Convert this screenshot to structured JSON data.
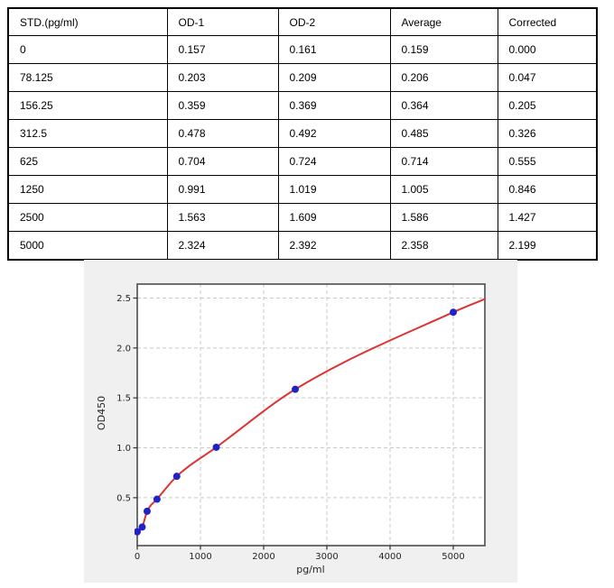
{
  "table": {
    "headers": [
      "STD.(pg/ml)",
      "OD-1",
      "OD-2",
      "Average",
      "Corrected"
    ],
    "rows": [
      [
        "0",
        "0.157",
        "0.161",
        "0.159",
        "0.000"
      ],
      [
        "78.125",
        "0.203",
        "0.209",
        "0.206",
        "0.047"
      ],
      [
        "156.25",
        "0.359",
        "0.369",
        "0.364",
        "0.205"
      ],
      [
        "312.5",
        "0.478",
        "0.492",
        "0.485",
        "0.326"
      ],
      [
        "625",
        "0.704",
        "0.724",
        "0.714",
        "0.555"
      ],
      [
        "1250",
        "0.991",
        "1.019",
        "1.005",
        "0.846"
      ],
      [
        "2500",
        "1.563",
        "1.609",
        "1.586",
        "1.427"
      ],
      [
        "5000",
        "2.324",
        "2.392",
        "2.358",
        "2.199"
      ]
    ]
  },
  "chart_data": {
    "type": "scatter",
    "title": "",
    "xlabel": "pg/ml",
    "ylabel": "OD450",
    "x": [
      0,
      78.125,
      156.25,
      312.5,
      625,
      1250,
      2500,
      5000
    ],
    "y": [
      0.159,
      0.206,
      0.364,
      0.485,
      0.714,
      1.005,
      1.586,
      2.358
    ],
    "series": [
      {
        "name": "standard-points",
        "style": "scatter",
        "color": "#2121c8"
      },
      {
        "name": "fitted-curve",
        "style": "line",
        "color": "#dd3333",
        "curve_x": [
          0,
          78.125,
          156.25,
          312.5,
          625,
          1250,
          2500,
          5000,
          5500
        ],
        "curve_y": [
          0.159,
          0.206,
          0.364,
          0.485,
          0.714,
          1.005,
          1.586,
          2.358,
          2.49
        ]
      }
    ],
    "xticks": [
      0,
      1000,
      2000,
      3000,
      4000,
      5000
    ],
    "yticks": [
      0.5,
      1.0,
      1.5,
      2.0,
      2.5
    ],
    "xlim": [
      0,
      5500
    ],
    "ylim": [
      0.02,
      2.64
    ],
    "grid": true,
    "legend": "none",
    "colors": {
      "panel_bg": "#f0f0f0",
      "plot_bg": "#ffffff",
      "grid": "#c9c9c9",
      "spine": "#4d4d4d",
      "tick": "#333333"
    }
  }
}
